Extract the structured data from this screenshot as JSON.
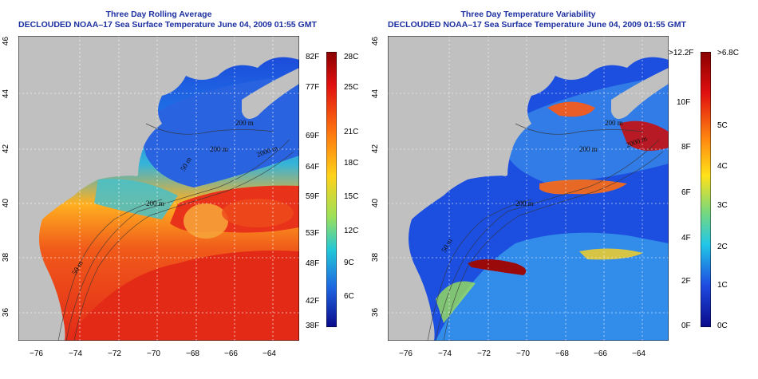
{
  "left_panel": {
    "title_line1": "Three Day Rolling Average",
    "title_line2": "DECLOUDED NOAA–17 Sea Surface Temperature June 04, 2009 01:55 GMT",
    "lon_ticks": [
      "−76",
      "−74",
      "−72",
      "−70",
      "−68",
      "−66",
      "−64"
    ],
    "lat_ticks": [
      "46",
      "44",
      "42",
      "40",
      "38",
      "36"
    ],
    "contour_labels": [
      "200 m",
      "200 m",
      "50 m",
      "200 m",
      "2000 m",
      "50 m"
    ],
    "colorbar_f": [
      "82F",
      "77F",
      "69F",
      "64F",
      "59F",
      "53F",
      "48F",
      "42F",
      "38F"
    ],
    "colorbar_c": [
      "28C",
      "25C",
      "21C",
      "18C",
      "15C",
      "12C",
      "9C",
      "6C"
    ]
  },
  "right_panel": {
    "title_line1": "Three Day Temperature Variability",
    "title_line2": "DECLOUDED NOAA–17 Sea Surface Temperature June 04, 2009 01:55 GMT",
    "lon_ticks": [
      "−76",
      "−74",
      "−72",
      "−70",
      "−68",
      "−66",
      "−64"
    ],
    "lat_ticks": [
      "46",
      "44",
      "42",
      "40",
      "38",
      "36"
    ],
    "contour_labels": [
      "200 m",
      "200 m",
      "2000 m",
      "200 m",
      "50 m"
    ],
    "colorbar_f": [
      ">12.2F",
      "10F",
      "8F",
      "6F",
      "4F",
      "2F",
      "0F"
    ],
    "colorbar_c": [
      ">6.8C",
      "5C",
      "4C",
      "3C",
      "2C",
      "1C",
      "0C"
    ]
  },
  "colors": {
    "title": "#1c2fa0",
    "land": "#c0c0c0",
    "warm": "#e8281e",
    "cold": "#1a3fd6"
  }
}
